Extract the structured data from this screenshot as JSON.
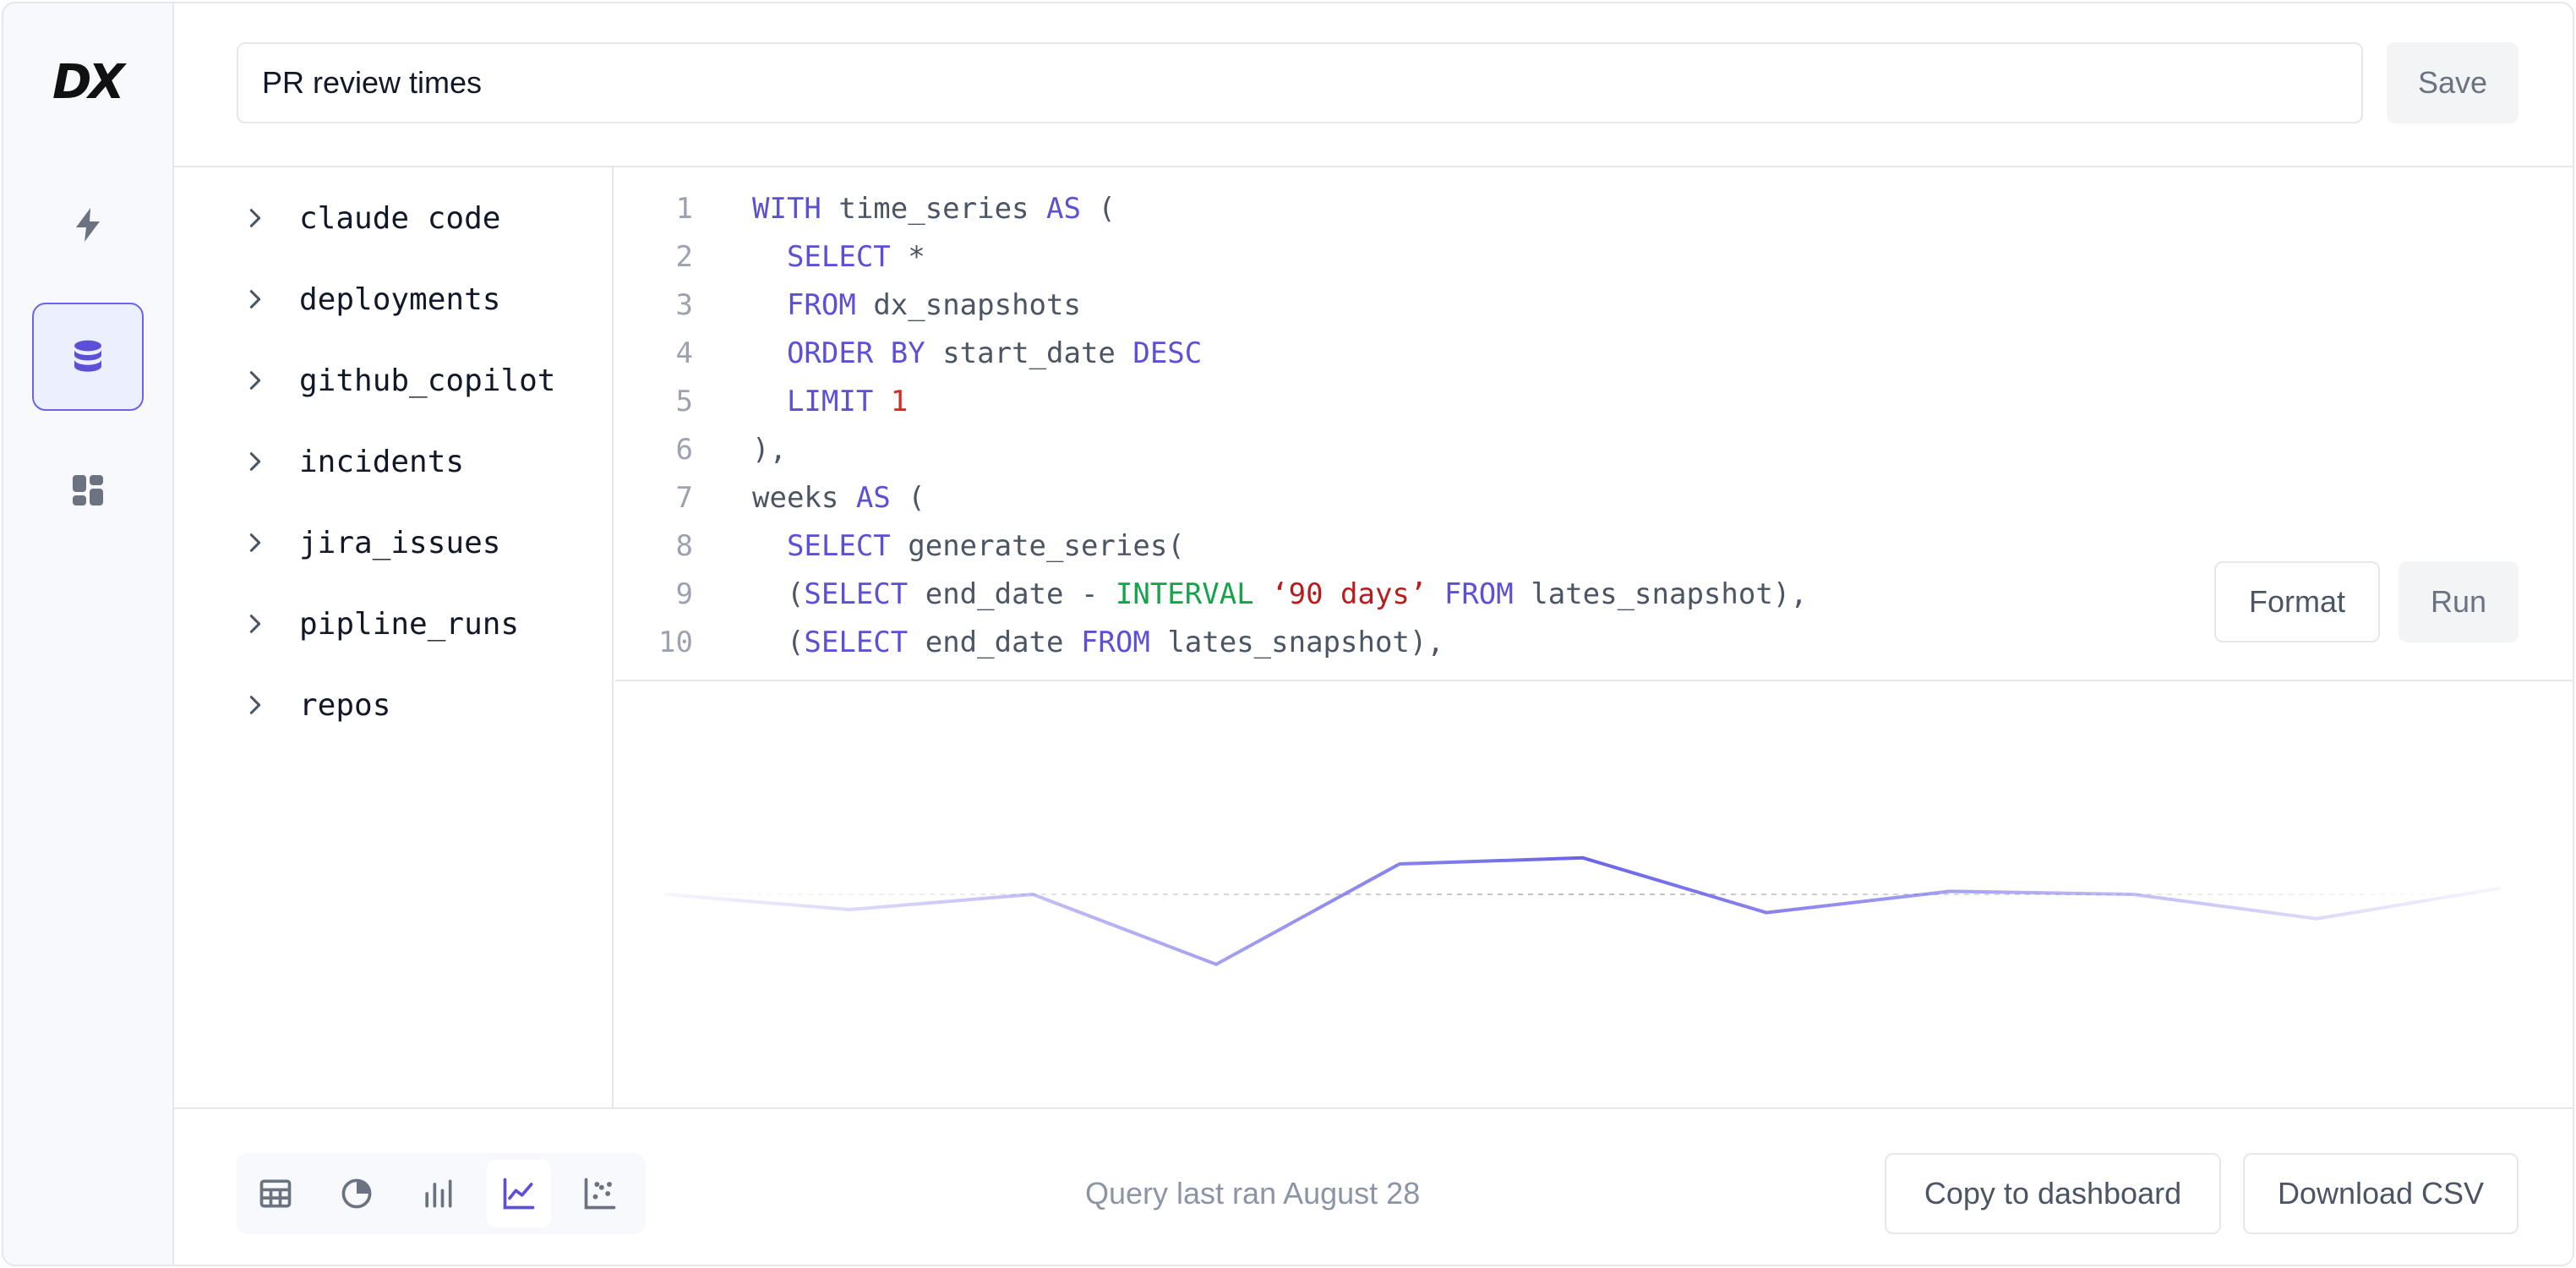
{
  "app": {
    "logo_text": "DX"
  },
  "sidebar": {
    "items": [
      {
        "name": "bolt-icon",
        "active": false
      },
      {
        "name": "database-icon",
        "active": true
      },
      {
        "name": "dashboard-icon",
        "active": false
      }
    ]
  },
  "header": {
    "query_title": "PR review times",
    "save_label": "Save"
  },
  "schema": {
    "tables": [
      "claude code",
      "deployments",
      "github_copilot",
      "incidents",
      "jira_issues",
      "pipline_runs",
      "repos"
    ]
  },
  "editor": {
    "lines": [
      [
        [
          "kw",
          "WITH"
        ],
        [
          "tx",
          " time_series "
        ],
        [
          "kw",
          "AS"
        ],
        [
          "tx",
          " ("
        ]
      ],
      [
        [
          "tx",
          "  "
        ],
        [
          "kw",
          "SELECT"
        ],
        [
          "tx",
          " *"
        ]
      ],
      [
        [
          "tx",
          "  "
        ],
        [
          "kw",
          "FROM"
        ],
        [
          "tx",
          " dx_snapshots"
        ]
      ],
      [
        [
          "tx",
          "  "
        ],
        [
          "kw",
          "ORDER BY"
        ],
        [
          "tx",
          " start_date "
        ],
        [
          "kw",
          "DESC"
        ]
      ],
      [
        [
          "tx",
          "  "
        ],
        [
          "kw",
          "LIMIT"
        ],
        [
          "tx",
          " "
        ],
        [
          "num",
          "1"
        ]
      ],
      [
        [
          "tx",
          "),"
        ]
      ],
      [
        [
          "tx",
          "weeks "
        ],
        [
          "kw",
          "AS"
        ],
        [
          "tx",
          " ("
        ]
      ],
      [
        [
          "tx",
          "  "
        ],
        [
          "kw",
          "SELECT"
        ],
        [
          "tx",
          " generate_series("
        ]
      ],
      [
        [
          "tx",
          "  ("
        ],
        [
          "kw",
          "SELECT"
        ],
        [
          "tx",
          " end_date - "
        ],
        [
          "fn",
          "INTERVAL"
        ],
        [
          "tx",
          " "
        ],
        [
          "str",
          "‘90 days’"
        ],
        [
          "tx",
          " "
        ],
        [
          "kw",
          "FROM"
        ],
        [
          "tx",
          " lates_snapshot),"
        ]
      ],
      [
        [
          "tx",
          "  ("
        ],
        [
          "kw",
          "SELECT"
        ],
        [
          "tx",
          " end_date "
        ],
        [
          "kw",
          "FROM"
        ],
        [
          "tx",
          " lates_snapshot),"
        ]
      ]
    ],
    "format_label": "Format",
    "run_label": "Run"
  },
  "chart_data": {
    "type": "line",
    "x": [
      0,
      1,
      2,
      3,
      4,
      5,
      6,
      7,
      8,
      9,
      10
    ],
    "series": [
      {
        "values": [
          0.0,
          -0.5,
          0.0,
          -2.3,
          1.0,
          1.2,
          -0.6,
          0.1,
          0.0,
          -0.8,
          0.2
        ]
      }
    ],
    "baseline": 0,
    "color": "#6b63e8"
  },
  "footer": {
    "viz_types": [
      {
        "name": "table-icon",
        "active": false
      },
      {
        "name": "pie-chart-icon",
        "active": false
      },
      {
        "name": "bar-chart-icon",
        "active": false
      },
      {
        "name": "line-chart-icon",
        "active": true
      },
      {
        "name": "scatter-chart-icon",
        "active": false
      }
    ],
    "status_text": "Query last ran August 28",
    "copy_label": "Copy to dashboard",
    "csv_label": "Download CSV"
  }
}
